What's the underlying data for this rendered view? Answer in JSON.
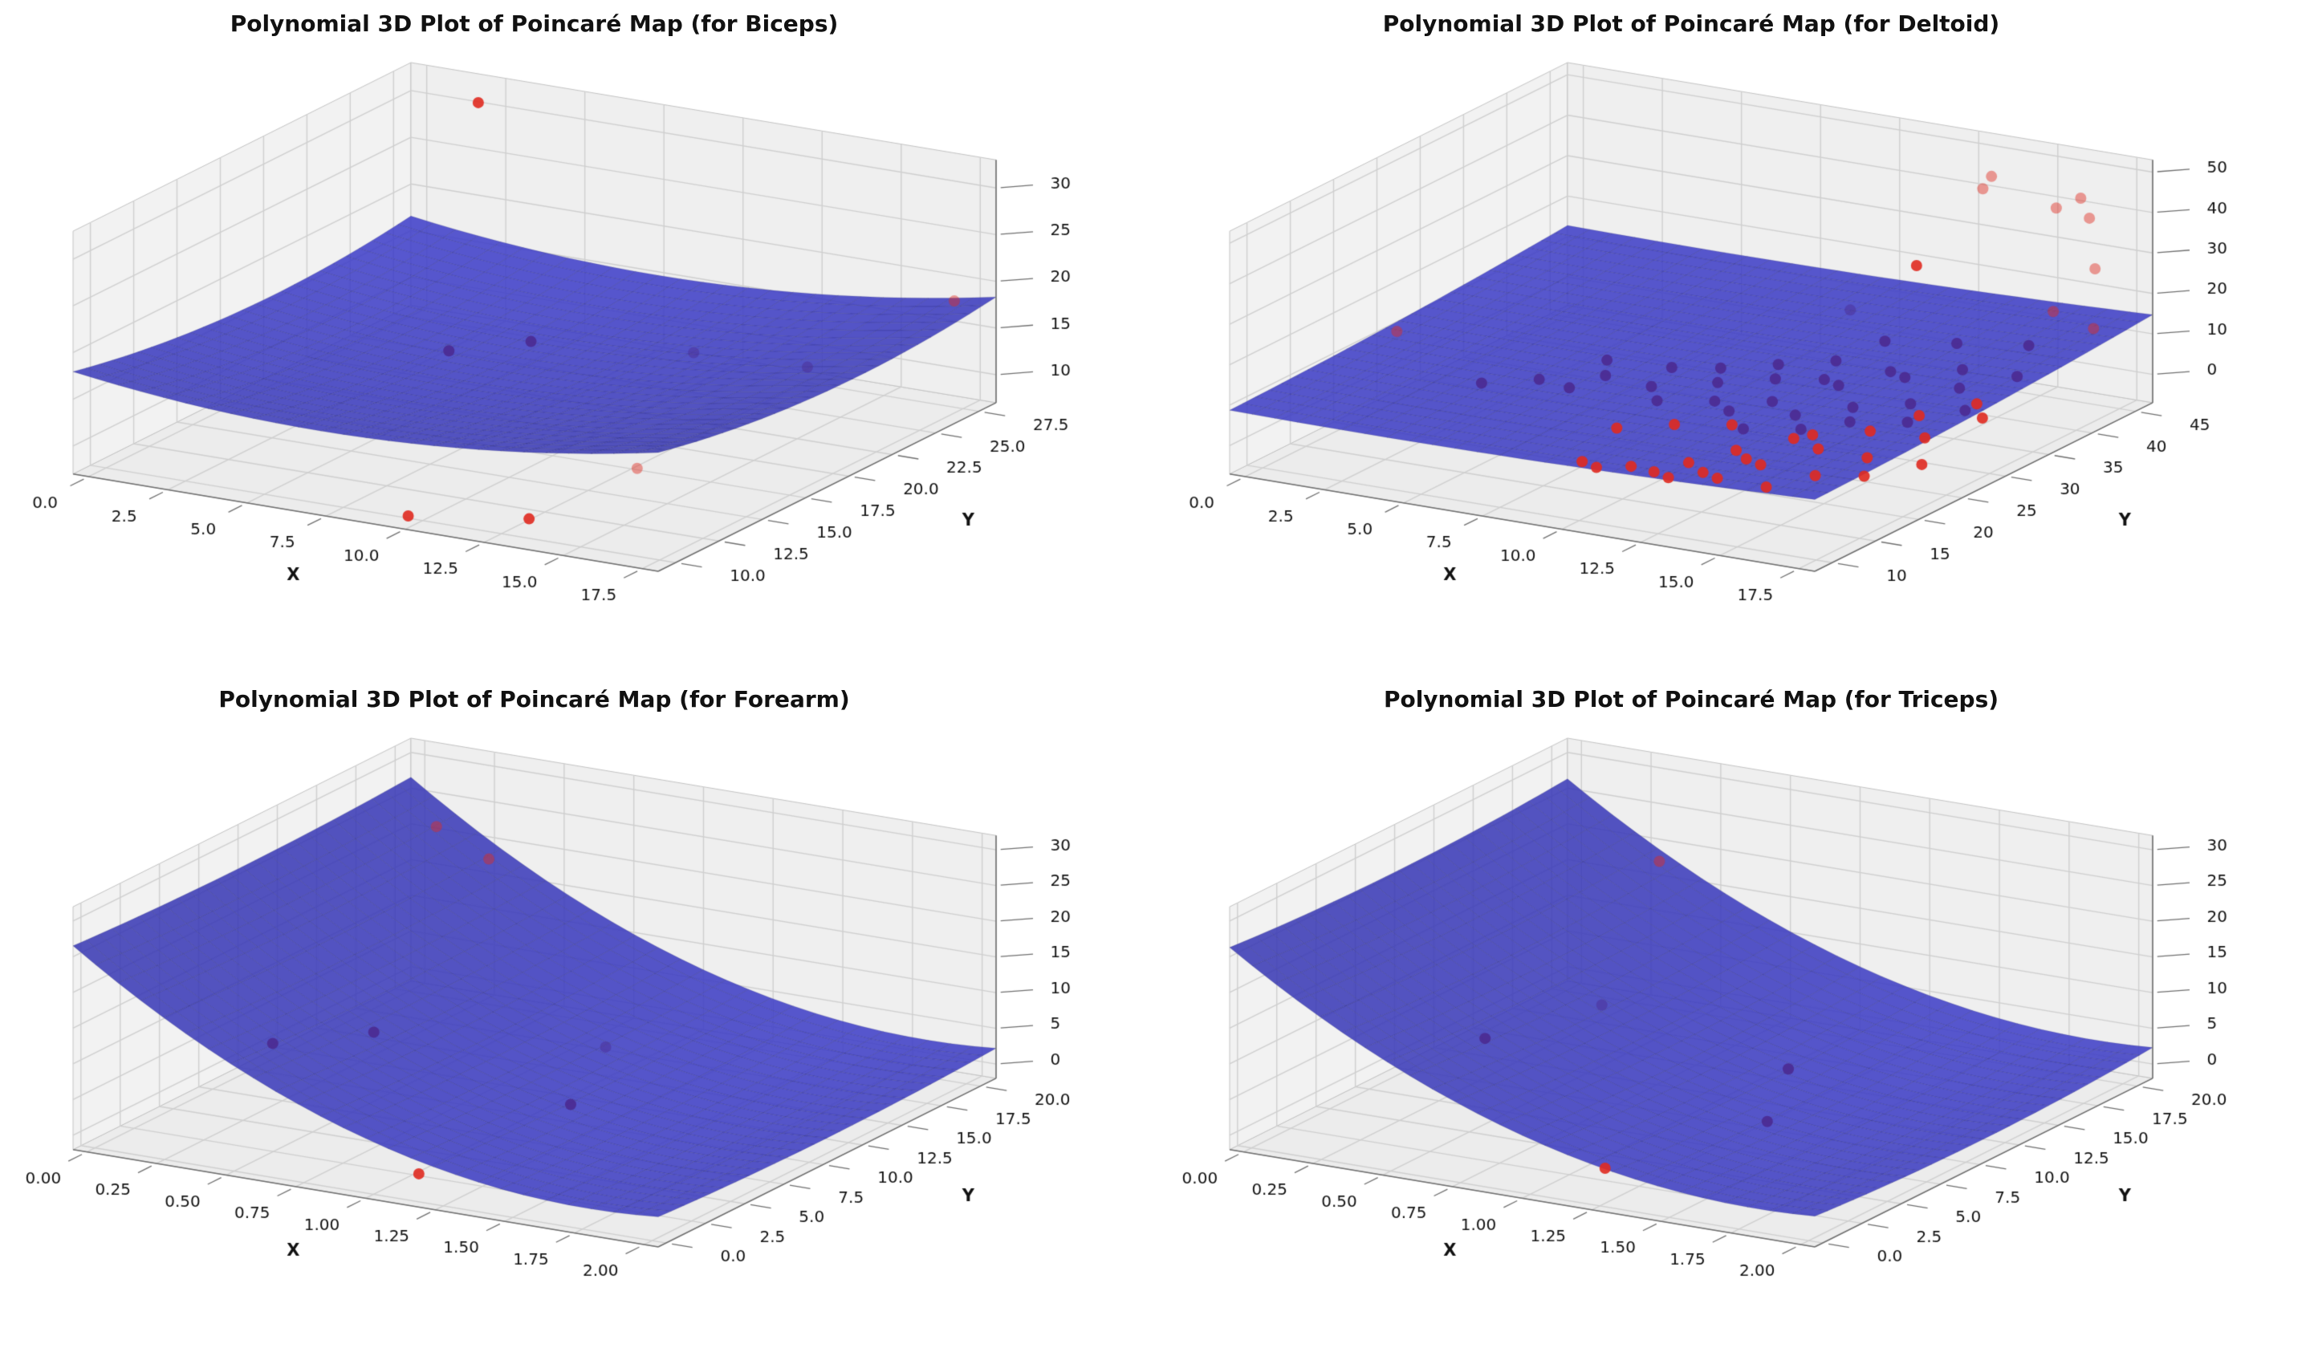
{
  "style": {
    "background": "#ffffff",
    "pane_floor": "#ececec",
    "pane_wall_left": "#f2f2f2",
    "pane_wall_back": "#efefef",
    "grid_color": "#cfcfcf",
    "pane_edge": "#c2c2c2",
    "axis_line": "#6e6e6e",
    "tick_text": "#111111",
    "title_color": "#111111",
    "point_colors": {
      "red": "#e02a20",
      "purple": "#4b2a91"
    }
  },
  "chart_data": [
    {
      "type": "surface3d",
      "title": "Polynomial 3D Plot of Poincaré Map (for Biceps)",
      "xlabel": "X",
      "ylabel": "Y",
      "xlim": [
        -0.5,
        18
      ],
      "ylim": [
        9,
        28.5
      ],
      "zlim": [
        7,
        33
      ],
      "xtick_values": [
        0,
        2.5,
        5,
        7.5,
        10,
        12.5,
        15,
        17.5
      ],
      "xtick_labels": [
        "0.0",
        "2.5",
        "5.0",
        "7.5",
        "10.0",
        "12.5",
        "15.0",
        "17.5"
      ],
      "ytick_values": [
        10,
        12.5,
        15,
        17.5,
        20,
        22.5,
        25,
        27.5
      ],
      "ytick_labels": [
        "10.0",
        "12.5",
        "15.0",
        "17.5",
        "20.0",
        "22.5",
        "25.0",
        "27.5"
      ],
      "ztick_values": [
        10,
        15,
        20,
        25,
        30
      ],
      "ztick_labels": [
        "10",
        "15",
        "20",
        "25",
        "30"
      ],
      "surface": {
        "color": "#4141c8",
        "base": 13.5,
        "qx": 11,
        "cx": 0.42,
        "qy": 7,
        "cy": 0.6,
        "lx": 0,
        "ly": 0
      },
      "points": [
        [
          3,
          26,
          33,
          "r"
        ],
        [
          7,
          17,
          17,
          "p"
        ],
        [
          8.5,
          19,
          17,
          "p"
        ],
        [
          12,
          22,
          15,
          "p",
          1
        ],
        [
          14.5,
          24,
          13,
          "p",
          1
        ],
        [
          17.5,
          27,
          19,
          "r",
          1
        ],
        [
          9,
          11,
          6,
          "r"
        ],
        [
          12,
          12.5,
          6,
          "r"
        ],
        [
          13.5,
          16,
          9,
          "r",
          1
        ]
      ]
    },
    {
      "type": "surface3d",
      "title": "Polynomial 3D Plot of Poincaré Map (for Deltoid)",
      "xlabel": "X",
      "ylabel": "Y",
      "xlim": [
        -0.5,
        18
      ],
      "ylim": [
        8,
        47
      ],
      "zlim": [
        -7,
        53
      ],
      "xtick_values": [
        0,
        2.5,
        5,
        7.5,
        10,
        12.5,
        15,
        17.5
      ],
      "xtick_labels": [
        "0.0",
        "2.5",
        "5.0",
        "7.5",
        "10.0",
        "12.5",
        "15.0",
        "17.5"
      ],
      "ytick_values": [
        10,
        15,
        20,
        25,
        30,
        35,
        40,
        45
      ],
      "ytick_labels": [
        "10",
        "15",
        "20",
        "25",
        "30",
        "35",
        "40",
        "45"
      ],
      "ztick_values": [
        0,
        10,
        20,
        30,
        40,
        50
      ],
      "ztick_labels": [
        "0",
        "10",
        "20",
        "30",
        "40",
        "50"
      ],
      "surface": {
        "color": "#4141c8",
        "base": 7,
        "qx": 4,
        "cx": 0.5,
        "qy": 3,
        "cy": 0.5,
        "lx": 2,
        "ly": 4
      },
      "points": [
        [
          5,
          17,
          13,
          "p"
        ],
        [
          6,
          20,
          12,
          "p"
        ],
        [
          6.5,
          26,
          11,
          "p"
        ],
        [
          7,
          24,
          10,
          "p"
        ],
        [
          7.5,
          18,
          14,
          "p"
        ],
        [
          8,
          28,
          9,
          "p"
        ],
        [
          9,
          22,
          12,
          "p"
        ],
        [
          9,
          30,
          8,
          "p"
        ],
        [
          10,
          19,
          13,
          "p"
        ],
        [
          10,
          26,
          10,
          "p"
        ],
        [
          10,
          33,
          7,
          "p"
        ],
        [
          11,
          22,
          11,
          "p"
        ],
        [
          11,
          29,
          9,
          "p"
        ],
        [
          11,
          36,
          6,
          "p"
        ],
        [
          12,
          20,
          12,
          "p"
        ],
        [
          12,
          25,
          9,
          "p"
        ],
        [
          12,
          31,
          8,
          "p"
        ],
        [
          12,
          38,
          10,
          "p"
        ],
        [
          13,
          18,
          11,
          "p"
        ],
        [
          13,
          24,
          8,
          "p"
        ],
        [
          13,
          29,
          10,
          "p"
        ],
        [
          13,
          35,
          7,
          "p"
        ],
        [
          14,
          21,
          9,
          "p"
        ],
        [
          14,
          27,
          8,
          "p"
        ],
        [
          14,
          33,
          9,
          "p"
        ],
        [
          14,
          39,
          11,
          "p"
        ],
        [
          15,
          23,
          10,
          "p"
        ],
        [
          15,
          30,
          7,
          "p"
        ],
        [
          15,
          36,
          9,
          "p"
        ],
        [
          16,
          26,
          8,
          "p"
        ],
        [
          16,
          32,
          10,
          "p"
        ],
        [
          16,
          40,
          12,
          "p"
        ],
        [
          17,
          29,
          9,
          "p"
        ],
        [
          17,
          35,
          11,
          "p"
        ],
        [
          12,
          34,
          22,
          "p",
          1
        ],
        [
          9,
          14,
          2,
          "r"
        ],
        [
          10,
          16,
          0,
          "r"
        ],
        [
          10,
          12,
          4,
          "r"
        ],
        [
          11,
          15,
          1,
          "r"
        ],
        [
          11,
          19,
          -1,
          "r"
        ],
        [
          12,
          13,
          3,
          "r"
        ],
        [
          12,
          17,
          0,
          "r"
        ],
        [
          12,
          22,
          -2,
          "r"
        ],
        [
          13,
          15,
          2,
          "r"
        ],
        [
          13,
          20,
          0,
          "r"
        ],
        [
          13,
          26,
          1,
          "r"
        ],
        [
          14,
          17,
          -1,
          "r"
        ],
        [
          14,
          23,
          2,
          "r"
        ],
        [
          14,
          29,
          0,
          "r"
        ],
        [
          15,
          19,
          1,
          "r"
        ],
        [
          15,
          25,
          -1,
          "r"
        ],
        [
          15,
          31,
          3,
          "r"
        ],
        [
          16,
          21,
          0,
          "r"
        ],
        [
          16,
          28,
          2,
          "r"
        ],
        [
          16,
          34,
          4,
          "r"
        ],
        [
          17,
          24,
          1,
          "r"
        ],
        [
          17,
          31,
          5,
          "r"
        ],
        [
          11,
          24,
          3,
          "r"
        ],
        [
          10,
          21,
          5,
          "r"
        ],
        [
          9,
          18,
          6,
          "r"
        ],
        [
          12.5,
          19,
          4,
          "r"
        ],
        [
          13.5,
          22,
          5,
          "r"
        ],
        [
          14,
          42,
          46,
          "r",
          1
        ],
        [
          15.5,
          45,
          40,
          "r",
          1
        ],
        [
          16,
          47,
          36,
          "r",
          1
        ],
        [
          13,
          38,
          30,
          "r"
        ],
        [
          17,
          44,
          28,
          "r",
          1
        ],
        [
          16.5,
          41,
          20,
          "r",
          1
        ],
        [
          14,
          43,
          48,
          "r",
          1
        ],
        [
          16,
          46,
          42,
          "r",
          1
        ],
        [
          17.5,
          42,
          16,
          "r",
          1
        ],
        [
          1.5,
          20,
          18,
          "r",
          1
        ]
      ]
    },
    {
      "type": "surface3d",
      "title": "Polynomial 3D Plot of Poincaré Map (for Forearm)",
      "xlabel": "X",
      "ylabel": "Y",
      "xlim": [
        -0.05,
        2.05
      ],
      "ylim": [
        -0.5,
        21
      ],
      "zlim": [
        -2,
        32
      ],
      "xtick_values": [
        0,
        0.25,
        0.5,
        0.75,
        1,
        1.25,
        1.5,
        1.75,
        2
      ],
      "xtick_labels": [
        "0.00",
        "0.25",
        "0.50",
        "0.75",
        "1.00",
        "1.25",
        "1.50",
        "1.75",
        "2.00"
      ],
      "ytick_values": [
        0,
        2.5,
        5,
        7.5,
        10,
        12.5,
        15,
        17.5,
        20
      ],
      "ytick_labels": [
        "0.0",
        "2.5",
        "5.0",
        "7.5",
        "10.0",
        "12.5",
        "15.0",
        "17.5",
        "20.0"
      ],
      "ztick_values": [
        0,
        5,
        10,
        15,
        20,
        25,
        30
      ],
      "ztick_labels": [
        "0",
        "5",
        "10",
        "15",
        "20",
        "25",
        "30"
      ],
      "surface": {
        "color": "#4141c8",
        "base": 1,
        "qx": 32,
        "cx": 0.88,
        "qy": 3,
        "cy": 0.5,
        "lx": 0,
        "ly": 0
      },
      "points": [
        [
          0.85,
          10,
          33,
          "r",
          1
        ],
        [
          0.38,
          15,
          29,
          "r",
          1
        ],
        [
          0.3,
          6,
          8,
          "p"
        ],
        [
          0.55,
          8,
          9,
          "p"
        ],
        [
          1.1,
          13,
          5,
          "p",
          1
        ],
        [
          1.2,
          9,
          2,
          "p"
        ],
        [
          1.05,
          2,
          -1,
          "r"
        ]
      ]
    },
    {
      "type": "surface3d",
      "title": "Polynomial 3D Plot of Poincaré Map (for Triceps)",
      "xlabel": "X",
      "ylabel": "Y",
      "xlim": [
        -0.05,
        2.05
      ],
      "ylim": [
        -0.5,
        21
      ],
      "zlim": [
        -2,
        32
      ],
      "xtick_values": [
        0,
        0.25,
        0.5,
        0.75,
        1,
        1.25,
        1.5,
        1.75,
        2
      ],
      "xtick_labels": [
        "0.00",
        "0.25",
        "0.50",
        "0.75",
        "1.00",
        "1.25",
        "1.50",
        "1.75",
        "2.00"
      ],
      "ytick_values": [
        0,
        2.5,
        5,
        7.5,
        10,
        12.5,
        15,
        17.5,
        20
      ],
      "ytick_labels": [
        "0.0",
        "2.5",
        "5.0",
        "7.5",
        "10.0",
        "12.5",
        "15.0",
        "17.5",
        "20.0"
      ],
      "ztick_values": [
        0,
        5,
        10,
        15,
        20,
        25,
        30
      ],
      "ztick_labels": [
        "0",
        "5",
        "10",
        "15",
        "20",
        "25",
        "30"
      ],
      "surface": {
        "color": "#4141c8",
        "base": 1,
        "qx": 30,
        "cx": 0.9,
        "qy": 4,
        "cy": 0.5,
        "lx": 0,
        "ly": 0
      },
      "points": [
        [
          0.9,
          10,
          33,
          "r",
          1
        ],
        [
          0.5,
          6,
          10,
          "p"
        ],
        [
          0.75,
          9,
          13,
          "p",
          1
        ],
        [
          1.25,
          12,
          4,
          "p"
        ],
        [
          1.4,
          8,
          2,
          "p"
        ],
        [
          1.1,
          3,
          -1,
          "r"
        ]
      ]
    }
  ]
}
